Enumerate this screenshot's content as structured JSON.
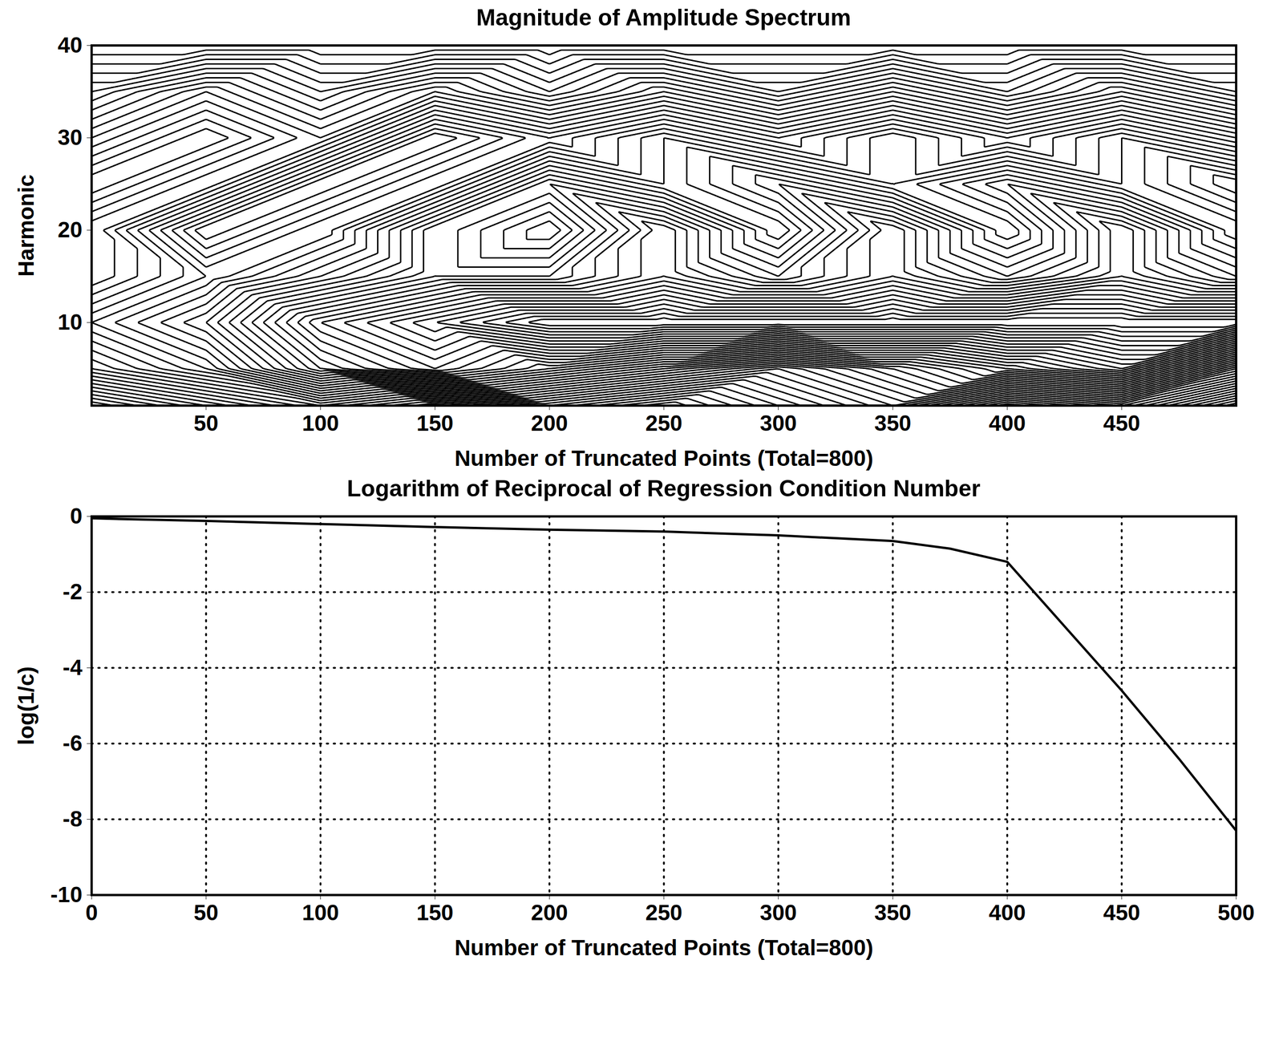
{
  "chart_data": [
    {
      "type": "contour",
      "title": "Magnitude of Amplitude Spectrum",
      "x_label": "Number of Truncated Points (Total=800)",
      "y_label": "Harmonic",
      "x": [
        0,
        50,
        100,
        150,
        200,
        250,
        300,
        350,
        400,
        450,
        500
      ],
      "y": [
        1,
        5,
        10,
        15,
        20,
        25,
        30,
        35,
        40
      ],
      "values": [
        [
          1,
          2,
          3,
          2,
          3,
          2,
          3,
          4,
          2,
          3,
          1
        ],
        [
          3,
          4,
          6,
          7,
          6,
          5,
          4,
          5,
          6,
          7,
          4
        ],
        [
          4,
          5,
          7,
          8,
          9,
          9,
          9,
          9,
          9,
          9,
          9
        ],
        [
          3,
          4,
          5,
          6,
          6,
          7,
          6,
          7,
          6,
          7,
          6
        ],
        [
          3,
          5,
          4,
          6,
          5,
          7,
          5,
          7,
          5,
          7,
          5
        ],
        [
          4,
          3,
          5,
          4,
          6,
          5,
          6,
          5,
          6,
          5,
          6
        ],
        [
          3,
          4,
          3,
          5,
          4,
          5,
          4,
          5,
          4,
          5,
          4
        ],
        [
          2,
          3,
          2,
          3,
          2,
          3,
          2,
          3,
          2,
          3,
          2
        ],
        [
          1,
          1,
          1,
          1,
          1,
          1,
          1,
          1,
          1,
          1,
          1
        ]
      ],
      "xlim": [
        0,
        500
      ],
      "xticks": [
        50,
        100,
        150,
        200,
        250,
        300,
        350,
        400,
        450
      ],
      "ylim": [
        1,
        40
      ],
      "yticks": [
        10,
        20,
        30,
        40
      ],
      "color": "#000000"
    },
    {
      "type": "line",
      "title": "Logarithm of Reciprocal of Regression Condition Number",
      "x_label": "Number of Truncated Points (Total=800)",
      "y_label": "log(1/c)",
      "x": [
        0,
        50,
        100,
        150,
        200,
        250,
        300,
        350,
        375,
        400,
        425,
        450,
        475,
        500
      ],
      "values": [
        -0.05,
        -0.12,
        -0.2,
        -0.28,
        -0.35,
        -0.4,
        -0.5,
        -0.65,
        -0.85,
        -1.2,
        -2.9,
        -4.6,
        -6.4,
        -8.3
      ],
      "xlim": [
        0,
        500
      ],
      "xticks": [
        0,
        50,
        100,
        150,
        200,
        250,
        300,
        350,
        400,
        450,
        500
      ],
      "ylim": [
        -10,
        0
      ],
      "yticks": [
        -10,
        -8,
        -6,
        -4,
        -2,
        0
      ],
      "grid": true,
      "color": "#000000"
    }
  ]
}
